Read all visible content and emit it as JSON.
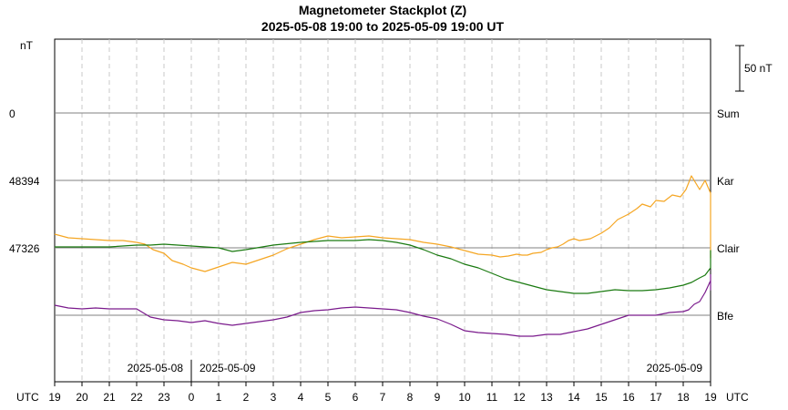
{
  "chart_data": {
    "type": "line",
    "title": "Magnetometer Stackplot (Z)",
    "subtitle": "2025-05-08 19:00 to 2025-05-09 19:00 UT",
    "ylabel": "nT",
    "xlabel": "UTC",
    "x_axis_label_right": "UTC",
    "x_ticks": [
      "19",
      "20",
      "21",
      "22",
      "23",
      "0",
      "1",
      "2",
      "3",
      "4",
      "5",
      "6",
      "7",
      "8",
      "9",
      "10",
      "11",
      "12",
      "13",
      "14",
      "15",
      "16",
      "17",
      "18",
      "19"
    ],
    "date_labels": {
      "left": "2025-05-08",
      "middle": "2025-05-09",
      "right": "2025-05-09"
    },
    "scale_bar": {
      "label": "50 nT",
      "nT": 50
    },
    "grid": true,
    "series": [
      {
        "name": "Sum",
        "baseline_label": "0",
        "color": "#f5a623",
        "hours": [
          0,
          0.5,
          1,
          1.5,
          2,
          2.5,
          3,
          3.3,
          3.6,
          4,
          4.3,
          4.7,
          5,
          5.5,
          6,
          6.5,
          7,
          8,
          8.5,
          9,
          9.5,
          10,
          10.5,
          11,
          11.5,
          12,
          12.5,
          13,
          13.5,
          14,
          14.5,
          15,
          15.5,
          16,
          16.3,
          16.6,
          16.9,
          17.1,
          17.3,
          17.5,
          17.8,
          18,
          18.2,
          18.4,
          18.6,
          18.8,
          19,
          19.2,
          19.4,
          19.6,
          19.8,
          20,
          20.3,
          20.6,
          21,
          21.3,
          21.5,
          21.8,
          22,
          22.3,
          22.6,
          22.9,
          23.1,
          23.3,
          23.6,
          23.8,
          24,
          24.2,
          24.4,
          24.6,
          24.8,
          25
        ],
        "values": [
          -59,
          -63,
          -64,
          -65,
          -66,
          -66,
          -68,
          -70,
          -76,
          -80,
          -88,
          -92,
          -96,
          -100,
          -95,
          -90,
          -92,
          -82,
          -75,
          -70,
          -65,
          -61,
          -63,
          -62,
          -61,
          -63,
          -64,
          -65,
          -68,
          -70,
          -73,
          -77,
          -81,
          -82,
          -84,
          -83,
          -81,
          -82,
          -82,
          -80,
          -79,
          -76,
          -74,
          -73,
          -70,
          -66,
          -64,
          -66,
          -65,
          -64,
          -61,
          -58,
          -52,
          -43,
          -37,
          -31,
          -26,
          -29,
          -22,
          -23,
          -16,
          -18,
          -10,
          5,
          -10,
          0,
          -14,
          -20,
          -30,
          -60,
          -85,
          -78
        ]
      },
      {
        "name": "Kar",
        "baseline_label": "48394",
        "color": "#1a7a10",
        "hours": [
          0,
          1,
          2,
          3,
          3.5,
          4,
          4.5,
          5,
          5.5,
          6,
          6.5,
          7,
          8,
          9,
          10,
          11,
          11.5,
          12,
          12.5,
          13,
          13.5,
          14,
          14.5,
          15,
          15.5,
          16,
          16.5,
          17,
          17.5,
          18,
          18.5,
          19,
          19.5,
          20,
          20.5,
          21,
          21.5,
          22,
          22.5,
          23,
          23.3,
          23.6,
          23.8,
          24,
          24.3,
          24.6,
          24.8,
          25
        ],
        "values": [
          1,
          1,
          1,
          3,
          3,
          4,
          3,
          2,
          1,
          0,
          -4,
          -2,
          3,
          6,
          8,
          8,
          9,
          8,
          6,
          3,
          -2,
          -8,
          -12,
          -18,
          -22,
          -28,
          -34,
          -38,
          -42,
          -46,
          -48,
          -50,
          -50,
          -48,
          -46,
          -47,
          -47,
          -46,
          -44,
          -41,
          -38,
          -33,
          -30,
          -22,
          -19,
          -3,
          -6,
          -9
        ]
      },
      {
        "name": "Clair",
        "baseline_label": "47326",
        "color": "#7a1a8c",
        "hours": [
          0,
          0.5,
          1,
          1.5,
          2,
          2.5,
          3,
          3.5,
          4,
          4.5,
          5,
          5.5,
          6,
          6.5,
          7,
          8,
          8.5,
          9,
          9.5,
          10,
          10.5,
          11,
          11.5,
          12,
          12.5,
          13,
          13.5,
          14,
          14.5,
          15,
          15.5,
          16,
          16.5,
          17,
          17.5,
          18,
          18.5,
          19,
          19.5,
          20,
          20.5,
          21,
          21.5,
          22,
          22.5,
          23,
          23.2,
          23.4,
          23.6,
          23.8,
          24,
          24.2,
          24.4,
          24.6,
          24.8,
          25
        ],
        "values": [
          11,
          8,
          7,
          8,
          7,
          7,
          7,
          -2,
          -5,
          -6,
          -8,
          -6,
          -9,
          -11,
          -9,
          -5,
          -2,
          3,
          5,
          6,
          8,
          9,
          8,
          7,
          6,
          3,
          -1,
          -4,
          -10,
          -17,
          -19,
          -20,
          -21,
          -23,
          -23,
          -21,
          -21,
          -18,
          -15,
          -10,
          -5,
          0,
          0,
          0,
          3,
          4,
          6,
          12,
          15,
          25,
          38,
          36,
          28,
          40,
          42,
          45
        ]
      }
    ],
    "last_baseline_label": "Bfe"
  }
}
